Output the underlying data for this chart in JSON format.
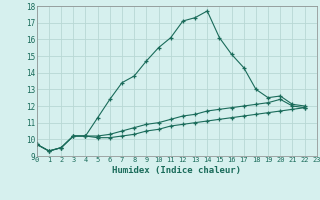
{
  "xlabel": "Humidex (Indice chaleur)",
  "background_color": "#d6f0ee",
  "grid_color": "#b8d8d4",
  "line_color": "#1a6b5a",
  "x": [
    0,
    1,
    2,
    3,
    4,
    5,
    6,
    7,
    8,
    9,
    10,
    11,
    12,
    13,
    14,
    15,
    16,
    17,
    18,
    19,
    20,
    21,
    22,
    23
  ],
  "line1": [
    9.7,
    9.3,
    9.5,
    10.2,
    10.2,
    11.3,
    12.4,
    13.4,
    13.8,
    14.7,
    15.5,
    16.1,
    17.1,
    17.3,
    17.7,
    16.1,
    15.1,
    14.3,
    13.0,
    12.5,
    12.6,
    12.1,
    12.0,
    null
  ],
  "line2": [
    9.7,
    9.3,
    9.5,
    10.2,
    10.2,
    10.2,
    10.3,
    10.5,
    10.7,
    10.9,
    11.0,
    11.2,
    11.4,
    11.5,
    11.7,
    11.8,
    11.9,
    12.0,
    12.1,
    12.2,
    12.4,
    12.0,
    11.9,
    null
  ],
  "line3": [
    9.7,
    9.3,
    9.5,
    10.2,
    10.2,
    10.1,
    10.1,
    10.2,
    10.3,
    10.5,
    10.6,
    10.8,
    10.9,
    11.0,
    11.1,
    11.2,
    11.3,
    11.4,
    11.5,
    11.6,
    11.7,
    11.8,
    11.9,
    null
  ],
  "xlim": [
    0,
    23
  ],
  "ylim": [
    9,
    18
  ],
  "yticks": [
    9,
    10,
    11,
    12,
    13,
    14,
    15,
    16,
    17,
    18
  ],
  "xticks": [
    0,
    1,
    2,
    3,
    4,
    5,
    6,
    7,
    8,
    9,
    10,
    11,
    12,
    13,
    14,
    15,
    16,
    17,
    18,
    19,
    20,
    21,
    22,
    23
  ]
}
